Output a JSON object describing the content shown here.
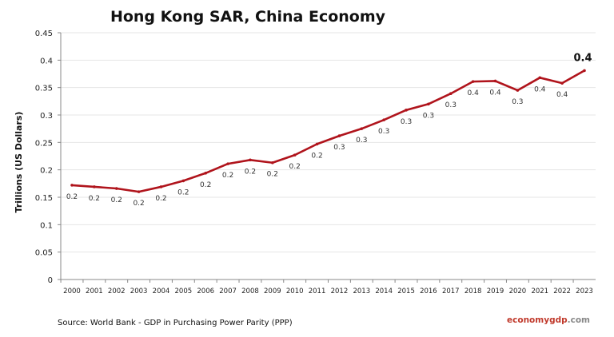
{
  "chart_data": {
    "type": "line",
    "title": "Hong Kong SAR, China Economy",
    "ylabel": "Trillions (US Dollars)",
    "xlabel": "",
    "ylim": [
      0,
      0.45
    ],
    "yticks": [
      "0",
      "0.05",
      "0.1",
      "0.15",
      "0.2",
      "0.25",
      "0.3",
      "0.35",
      "0.4",
      "0.45"
    ],
    "grid": true,
    "categories": [
      "2000",
      "2001",
      "2002",
      "2003",
      "2004",
      "2005",
      "2006",
      "2007",
      "2008",
      "2009",
      "2010",
      "2011",
      "2012",
      "2013",
      "2014",
      "2015",
      "2016",
      "2017",
      "2018",
      "2019",
      "2020",
      "2021",
      "2022",
      "2023"
    ],
    "values": [
      0.172,
      0.169,
      0.166,
      0.16,
      0.169,
      0.18,
      0.194,
      0.211,
      0.218,
      0.213,
      0.227,
      0.247,
      0.262,
      0.275,
      0.291,
      0.309,
      0.32,
      0.339,
      0.361,
      0.362,
      0.345,
      0.368,
      0.358,
      0.381
    ],
    "data_labels": [
      "0.2",
      "0.2",
      "0.2",
      "0.2",
      "0.2",
      "0.2",
      "0.2",
      "0.2",
      "0.2",
      "0.2",
      "0.2",
      "0.2",
      "0.3",
      "0.3",
      "0.3",
      "0.3",
      "0.3",
      "0.3",
      "0.4",
      "0.4",
      "0.3",
      "0.4",
      "0.4",
      "0.4"
    ],
    "line_color": "#b0141c"
  },
  "footer": {
    "source": "Source:  World Bank -  GDP  in Purchasing Power Parity (PPP)",
    "brand_a": "economy",
    "brand_b": "gdp",
    "brand_c": ".com"
  }
}
